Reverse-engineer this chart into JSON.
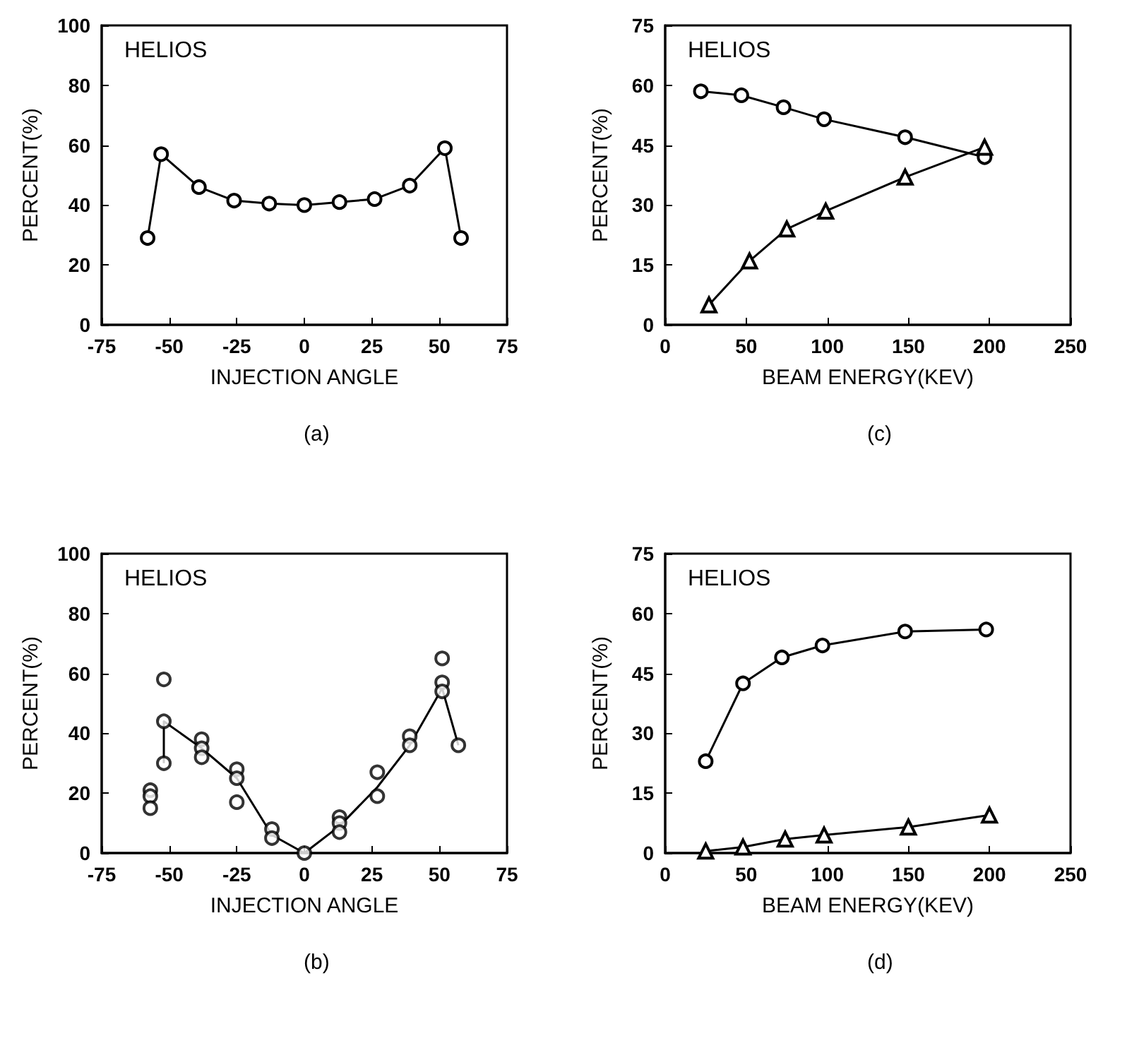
{
  "chart_data": [
    {
      "type": "line",
      "xlabel": "INJECTION ANGLE",
      "ylabel": "PERCENT(%)",
      "annotations": [
        "HELIOS",
        "(a)"
      ],
      "xlim": [
        -75,
        75
      ],
      "xticks": [
        -75,
        -50,
        -25,
        0,
        25,
        50,
        75
      ],
      "ylim": [
        0,
        100
      ],
      "yticks": [
        0,
        20,
        40,
        60,
        80,
        100
      ],
      "marker": "circle",
      "series": [
        {
          "color": "#000000",
          "x": [
            -58,
            -53,
            -39,
            -26,
            -13,
            0,
            13,
            26,
            39,
            52,
            58
          ],
          "values": [
            29,
            57,
            46,
            41.5,
            40.5,
            40,
            41,
            42,
            46.5,
            59,
            29
          ]
        }
      ]
    },
    {
      "type": "line",
      "xlabel": "BEAM ENERGY(KEV)",
      "ylabel": "PERCENT(%)",
      "annotations": [
        "HELIOS",
        "(c)"
      ],
      "xlim": [
        0,
        250
      ],
      "xticks": [
        0,
        50,
        100,
        150,
        200,
        250
      ],
      "ylim": [
        0,
        75
      ],
      "yticks": [
        0,
        15,
        30,
        45,
        60,
        75
      ],
      "series": [
        {
          "color": "#000000",
          "marker": "circle",
          "x": [
            22,
            47,
            73,
            98,
            148,
            197
          ],
          "values": [
            58.5,
            57.5,
            54.5,
            51.5,
            47,
            42
          ]
        },
        {
          "color": "#000000",
          "marker": "triangle",
          "x": [
            27,
            52,
            75,
            99,
            148,
            197
          ],
          "values": [
            5,
            16,
            24,
            28.5,
            37,
            44.5
          ]
        }
      ]
    },
    {
      "type": "line",
      "xlabel": "INJECTION ANGLE",
      "ylabel": "PERCENT(%)",
      "annotations": [
        "HELIOS",
        "(b)"
      ],
      "xlim": [
        -75,
        75
      ],
      "xticks": [
        -75,
        -50,
        -25,
        0,
        25,
        50,
        75
      ],
      "ylim": [
        0,
        100
      ],
      "yticks": [
        0,
        20,
        40,
        60,
        80,
        100
      ],
      "series": [
        {
          "type": "line",
          "marker": "none",
          "color": "#000000",
          "x": [
            -52,
            -52,
            -38,
            -25,
            -12,
            0,
            13,
            27,
            39,
            51,
            57
          ],
          "values": [
            30,
            44,
            35,
            25,
            6,
            0,
            9,
            22,
            36,
            55,
            36
          ]
        },
        {
          "type": "scatter",
          "marker": "circle",
          "color": "#000000",
          "x": [
            -57,
            -57,
            -57,
            -52,
            -52,
            -52,
            -38,
            -38,
            -38,
            -25,
            -25,
            -25,
            -12,
            -12,
            0,
            13,
            13,
            13,
            27,
            27,
            39,
            39,
            51,
            51,
            51,
            57
          ],
          "values": [
            21,
            19,
            15,
            58,
            44,
            30,
            38,
            35,
            32,
            28,
            25,
            17,
            8,
            5,
            0,
            12,
            10,
            7,
            27,
            19,
            39,
            36,
            65,
            57,
            54,
            36
          ]
        }
      ]
    },
    {
      "type": "line",
      "xlabel": "BEAM ENERGY(KEV)",
      "ylabel": "PERCENT(%)",
      "annotations": [
        "HELIOS",
        "(d)"
      ],
      "xlim": [
        0,
        250
      ],
      "xticks": [
        0,
        50,
        100,
        150,
        200,
        250
      ],
      "ylim": [
        0,
        75
      ],
      "yticks": [
        0,
        15,
        30,
        45,
        60,
        75
      ],
      "series": [
        {
          "color": "#000000",
          "marker": "circle",
          "x": [
            25,
            48,
            72,
            97,
            148,
            198
          ],
          "values": [
            23,
            42.5,
            49,
            52,
            55.5,
            56
          ]
        },
        {
          "color": "#000000",
          "marker": "triangle",
          "x": [
            25,
            48,
            74,
            98,
            150,
            200
          ],
          "values": [
            0.5,
            1.5,
            3.5,
            4.5,
            6.5,
            9.5
          ]
        }
      ]
    }
  ]
}
